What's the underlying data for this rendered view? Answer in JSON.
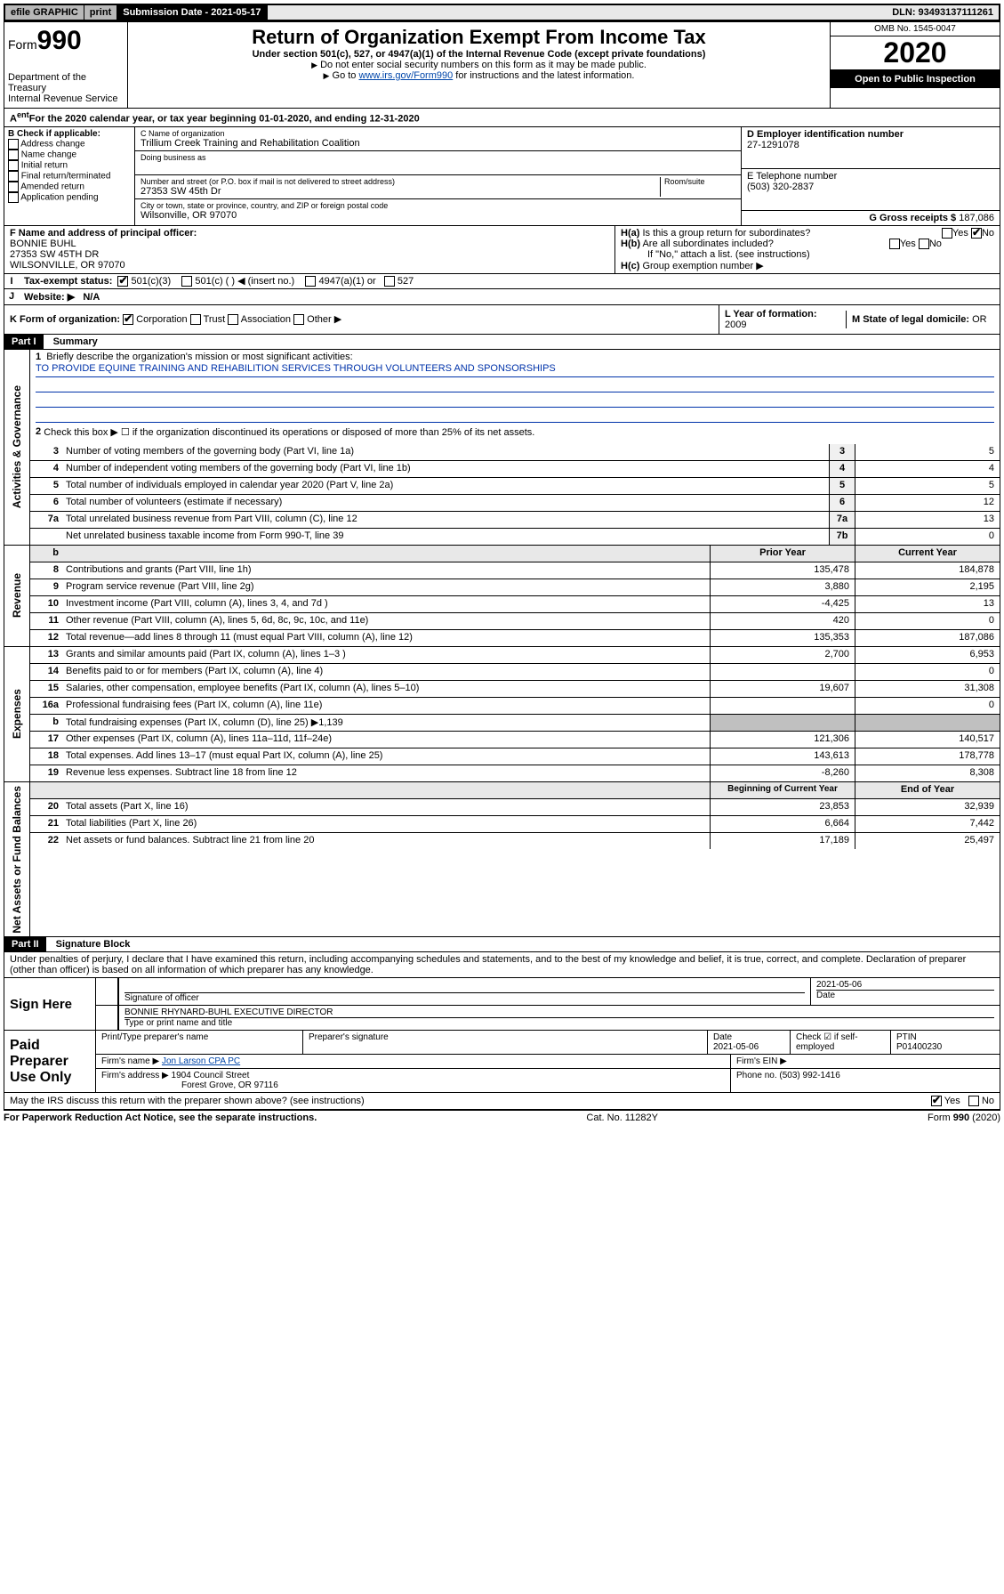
{
  "topbar": {
    "efile": "efile GRAPHIC",
    "print": "print",
    "sub_label": "Submission Date - 2021-05-17",
    "dln": "DLN: 93493137111261"
  },
  "header": {
    "form_word": "Form",
    "form_num": "990",
    "title": "Return of Organization Exempt From Income Tax",
    "subtitle": "Under section 501(c), 527, or 4947(a)(1) of the Internal Revenue Code (except private foundations)",
    "note1": "Do not enter social security numbers on this form as it may be made public.",
    "note2_pre": "Go to ",
    "note2_link": "www.irs.gov/Form990",
    "note2_post": " for instructions and the latest information.",
    "dept": "Department of the Treasury",
    "irs": "Internal Revenue Service",
    "omb": "OMB No. 1545-0047",
    "year": "2020",
    "open": "Open to Public Inspection"
  },
  "period": {
    "text_pre": "For the 2020 calendar year, or tax year beginning ",
    "begin": "01-01-2020",
    "mid": ", and ending ",
    "end": "12-31-2020"
  },
  "boxB": {
    "title": "B Check if applicable:",
    "items": [
      "Address change",
      "Name change",
      "Initial return",
      "Final return/terminated",
      "Amended return",
      "Application pending"
    ]
  },
  "boxC": {
    "label": "C Name of organization",
    "name": "Trillium Creek Training and Rehabilitation Coalition",
    "dba_label": "Doing business as",
    "addr_label": "Number and street (or P.O. box if mail is not delivered to street address)",
    "room_label": "Room/suite",
    "addr": "27353 SW 45th Dr",
    "city_label": "City or town, state or province, country, and ZIP or foreign postal code",
    "city": "Wilsonville, OR  97070"
  },
  "boxD": {
    "label": "D Employer identification number",
    "value": "27-1291078"
  },
  "boxE": {
    "label": "E Telephone number",
    "value": "(503) 320-2837"
  },
  "boxG": {
    "label": "G Gross receipts $",
    "value": "187,086"
  },
  "boxF": {
    "label": "F  Name and address of principal officer:",
    "name": "BONNIE BUHL",
    "addr1": "27353 SW 45TH DR",
    "addr2": "WILSONVILLE, OR  97070"
  },
  "boxH": {
    "a": "Is this a group return for subordinates?",
    "b": "Are all subordinates included?",
    "b_note": "If \"No,\" attach a list. (see instructions)",
    "c": "Group exemption number ▶"
  },
  "rowI": {
    "label": "Tax-exempt status:",
    "opt1": "501(c)(3)",
    "opt2": "501(c) (  ) ◀ (insert no.)",
    "opt3": "4947(a)(1) or",
    "opt4": "527"
  },
  "rowJ": {
    "label": "Website: ▶",
    "value": "N/A"
  },
  "rowK": {
    "label": "K Form of organization:",
    "opts": [
      "Corporation",
      "Trust",
      "Association",
      "Other ▶"
    ]
  },
  "rowL": {
    "label": "L Year of formation:",
    "value": "2009"
  },
  "rowM": {
    "label": "M State of legal domicile:",
    "value": "OR"
  },
  "part1": {
    "header": "Part I",
    "title": "Summary",
    "line1_label": "Briefly describe the organization's mission or most significant activities:",
    "mission": "TO PROVIDE EQUINE TRAINING AND REHABILITION SERVICES THROUGH VOLUNTEERS AND SPONSORSHIPS",
    "line2": "Check this box ▶ ☐ if the organization discontinued its operations or disposed of more than 25% of its net assets.",
    "lines_gov": [
      {
        "n": "3",
        "d": "Number of voting members of the governing body (Part VI, line 1a)",
        "b": "3",
        "v": "5"
      },
      {
        "n": "4",
        "d": "Number of independent voting members of the governing body (Part VI, line 1b)",
        "b": "4",
        "v": "4"
      },
      {
        "n": "5",
        "d": "Total number of individuals employed in calendar year 2020 (Part V, line 2a)",
        "b": "5",
        "v": "5"
      },
      {
        "n": "6",
        "d": "Total number of volunteers (estimate if necessary)",
        "b": "6",
        "v": "12"
      },
      {
        "n": "7a",
        "d": "Total unrelated business revenue from Part VIII, column (C), line 12",
        "b": "7a",
        "v": "13"
      },
      {
        "n": "",
        "d": "Net unrelated business taxable income from Form 990-T, line 39",
        "b": "7b",
        "v": "0"
      }
    ],
    "hdr_prior": "Prior Year",
    "hdr_curr": "Current Year",
    "lines_rev": [
      {
        "n": "8",
        "d": "Contributions and grants (Part VIII, line 1h)",
        "p": "135,478",
        "c": "184,878"
      },
      {
        "n": "9",
        "d": "Program service revenue (Part VIII, line 2g)",
        "p": "3,880",
        "c": "2,195"
      },
      {
        "n": "10",
        "d": "Investment income (Part VIII, column (A), lines 3, 4, and 7d )",
        "p": "-4,425",
        "c": "13"
      },
      {
        "n": "11",
        "d": "Other revenue (Part VIII, column (A), lines 5, 6d, 8c, 9c, 10c, and 11e)",
        "p": "420",
        "c": "0"
      },
      {
        "n": "12",
        "d": "Total revenue—add lines 8 through 11 (must equal Part VIII, column (A), line 12)",
        "p": "135,353",
        "c": "187,086"
      }
    ],
    "lines_exp": [
      {
        "n": "13",
        "d": "Grants and similar amounts paid (Part IX, column (A), lines 1–3 )",
        "p": "2,700",
        "c": "6,953"
      },
      {
        "n": "14",
        "d": "Benefits paid to or for members (Part IX, column (A), line 4)",
        "p": "",
        "c": "0"
      },
      {
        "n": "15",
        "d": "Salaries, other compensation, employee benefits (Part IX, column (A), lines 5–10)",
        "p": "19,607",
        "c": "31,308"
      },
      {
        "n": "16a",
        "d": "Professional fundraising fees (Part IX, column (A), line 11e)",
        "p": "",
        "c": "0"
      },
      {
        "n": "b",
        "d": "Total fundraising expenses (Part IX, column (D), line 25) ▶1,139",
        "p": "__SHADE__",
        "c": "__SHADE__"
      },
      {
        "n": "17",
        "d": "Other expenses (Part IX, column (A), lines 11a–11d, 11f–24e)",
        "p": "121,306",
        "c": "140,517"
      },
      {
        "n": "18",
        "d": "Total expenses. Add lines 13–17 (must equal Part IX, column (A), line 25)",
        "p": "143,613",
        "c": "178,778"
      },
      {
        "n": "19",
        "d": "Revenue less expenses. Subtract line 18 from line 12",
        "p": "-8,260",
        "c": "8,308"
      }
    ],
    "hdr_begin": "Beginning of Current Year",
    "hdr_end": "End of Year",
    "lines_net": [
      {
        "n": "20",
        "d": "Total assets (Part X, line 16)",
        "p": "23,853",
        "c": "32,939"
      },
      {
        "n": "21",
        "d": "Total liabilities (Part X, line 26)",
        "p": "6,664",
        "c": "7,442"
      },
      {
        "n": "22",
        "d": "Net assets or fund balances. Subtract line 21 from line 20",
        "p": "17,189",
        "c": "25,497"
      }
    ],
    "side_gov": "Activities & Governance",
    "side_rev": "Revenue",
    "side_exp": "Expenses",
    "side_net": "Net Assets or Fund Balances"
  },
  "part2": {
    "header": "Part II",
    "title": "Signature Block",
    "perjury": "Under penalties of perjury, I declare that I have examined this return, including accompanying schedules and statements, and to the best of my knowledge and belief, it is true, correct, and complete. Declaration of preparer (other than officer) is based on all information of which preparer has any knowledge."
  },
  "sign": {
    "left": "Sign Here",
    "sig_label": "Signature of officer",
    "date": "2021-05-06",
    "date_label": "Date",
    "name": "BONNIE RHYNARD-BUHL  EXECUTIVE DIRECTOR",
    "name_label": "Type or print name and title"
  },
  "paid": {
    "left": "Paid Preparer Use Only",
    "h1": "Print/Type preparer's name",
    "h2": "Preparer's signature",
    "h3": "Date",
    "h3v": "2021-05-06",
    "h4": "Check ☑ if self-employed",
    "h5": "PTIN",
    "h5v": "P01400230",
    "firm_label": "Firm's name    ▶",
    "firm": "Jon Larson CPA PC",
    "ein_label": "Firm's EIN ▶",
    "addr_label": "Firm's address ▶",
    "addr1": "1904 Council Street",
    "addr2": "Forest Grove, OR  97116",
    "phone_label": "Phone no.",
    "phone": "(503) 992-1416"
  },
  "discuss": {
    "text": "May the IRS discuss this return with the preparer shown above? (see instructions)",
    "yes": "Yes",
    "no": "No"
  },
  "footer": {
    "left": "For Paperwork Reduction Act Notice, see the separate instructions.",
    "mid": "Cat. No. 11282Y",
    "right": "Form 990 (2020)"
  }
}
